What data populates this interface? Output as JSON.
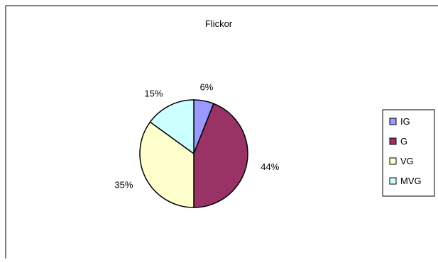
{
  "chart_data": {
    "type": "pie",
    "title": "Flickor",
    "categories": [
      "IG",
      "G",
      "VG",
      "MVG"
    ],
    "values": [
      6,
      44,
      35,
      15
    ],
    "value_labels": [
      "6%",
      "44%",
      "35%",
      "15%"
    ],
    "colors": [
      "#9999ff",
      "#993366",
      "#ffffcc",
      "#ccffff"
    ],
    "legend_position": "right",
    "grid": false
  }
}
